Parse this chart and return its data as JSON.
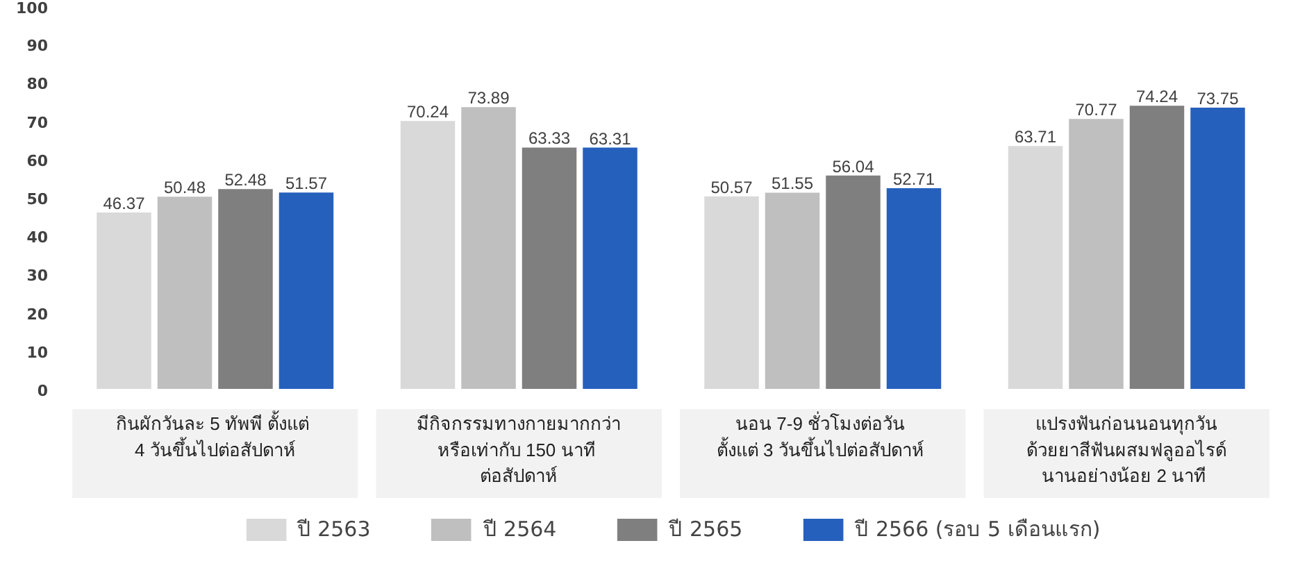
{
  "chart_data": {
    "type": "bar",
    "categories": [
      "กินผักวันละ  5 ทัพพี ตั้งแต่\n4 วันขึ้นไปต่อสัปดาห์",
      "มีกิจกรรมทางกายมากกว่า\nหรือเท่ากับ  150 นาที\nต่อสัปดาห์",
      "นอน  7-9 ชั่วโมงต่อวัน\nตั้งแต่  3 วันขึ้นไปต่อสัปดาห์",
      "แปรงฟันก่อนนอนทุกวัน\nด้วยยาสีฟันผสมฟลูออไรด์\nนานอย่างน้อย  2 นาที"
    ],
    "series": [
      {
        "name": "ปี 2563",
        "color": "#d9d9d9",
        "values": [
          46.37,
          70.24,
          50.57,
          63.71
        ]
      },
      {
        "name": "ปี 2564",
        "color": "#bfbfbf",
        "values": [
          50.48,
          73.89,
          51.55,
          70.77
        ]
      },
      {
        "name": "ปี 2565",
        "color": "#7f7f7f",
        "values": [
          52.48,
          63.33,
          56.04,
          74.24
        ]
      },
      {
        "name": "ปี 2566 (รอบ 5 เดือนแรก)",
        "color": "#2660bd",
        "values": [
          51.57,
          63.31,
          52.71,
          73.75
        ]
      }
    ],
    "ylim": [
      0,
      100
    ],
    "yticks": [
      0,
      10,
      20,
      30,
      40,
      50,
      60,
      70,
      80,
      90,
      100
    ],
    "data_labels": true,
    "grid": false,
    "legend": "bottom"
  }
}
